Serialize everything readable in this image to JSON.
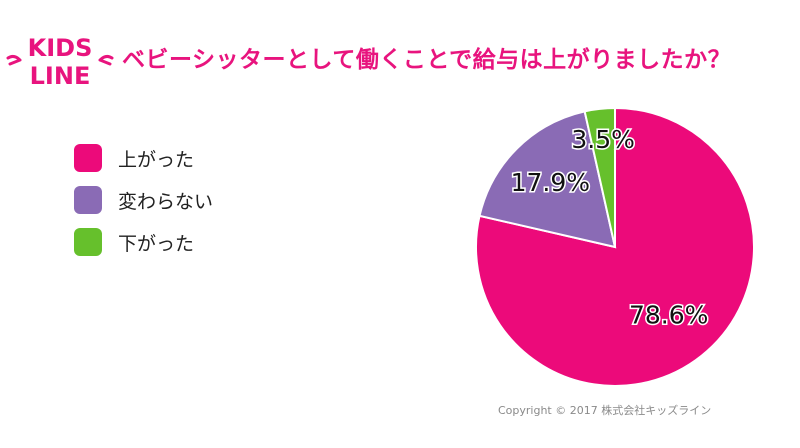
{
  "logo": {
    "line1": "KIDS",
    "line2": "LINE"
  },
  "title": "ベビーシッターとして働くことで給与は上がりましたか？",
  "colors": {
    "brand": "#e8147e",
    "up": "#ec0a7a",
    "same": "#8a6bb5",
    "down": "#66c02c"
  },
  "chart_data": {
    "type": "pie",
    "title": "ベビーシッターとして働くことで給与は上がりましたか？",
    "legend_position": "left",
    "slices": [
      {
        "label": "上がった",
        "value": 78.6,
        "display": "78.6%",
        "color": "#ec0a7a"
      },
      {
        "label": "変わらない",
        "value": 17.9,
        "display": "17.9%",
        "color": "#8a6bb5"
      },
      {
        "label": "下がった",
        "value": 3.5,
        "display": "3.5%",
        "color": "#66c02c"
      }
    ]
  },
  "copyright": "Copyright © 2017 株式会社キッズライン"
}
